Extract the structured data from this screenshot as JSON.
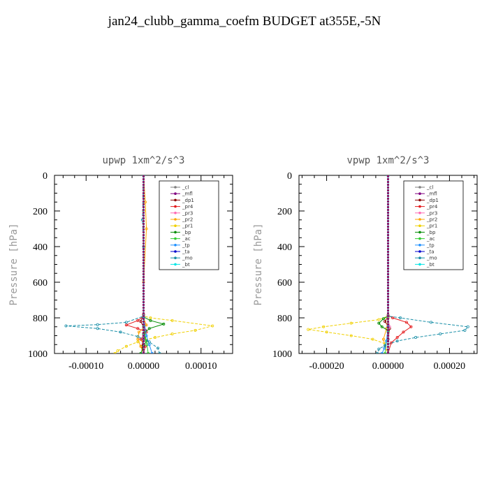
{
  "title": "jan24_clubb_gamma_coefm  BUDGET at355E,-5N",
  "chart_data": [
    {
      "type": "line",
      "title": "upwp   1xm^2/s^3",
      "ylabel": "Pressure [hPa]",
      "xlabel": "",
      "xlim": [
        -0.000155,
        0.000155
      ],
      "ylim": [
        1000,
        0
      ],
      "xticks": [
        -0.0001,
        0,
        0.0001
      ],
      "xtick_labels": [
        "-0.00010",
        "0.00000",
        "0.00010"
      ],
      "yticks": [
        0,
        200,
        400,
        600,
        800,
        1000
      ],
      "ytick_labels": [
        "0",
        "200",
        "400",
        "600",
        "800",
        "1000"
      ],
      "legend_position": "top-right",
      "series": [
        {
          "name": "_cl",
          "color": "#7f7f7f",
          "points": [
            [
              0,
              0
            ],
            [
              0,
              800
            ],
            [
              0,
              1000
            ]
          ]
        },
        {
          "name": "_mfl",
          "color": "#800080",
          "points": [
            [
              0,
              0
            ],
            [
              0,
              800
            ],
            [
              0,
              1000
            ]
          ]
        },
        {
          "name": "_dp1",
          "color": "#8b0000",
          "points": [
            [
              0,
              0
            ],
            [
              0,
              780
            ],
            [
              -5e-06,
              820
            ],
            [
              3e-06,
              870
            ],
            [
              0,
              920
            ],
            [
              -3e-06,
              960
            ],
            [
              0,
              1000
            ]
          ]
        },
        {
          "name": "_pr4",
          "color": "#e41a1c",
          "points": [
            [
              0,
              0
            ],
            [
              0,
              790
            ],
            [
              -1e-05,
              815
            ],
            [
              -3e-05,
              840
            ],
            [
              -1e-05,
              860
            ],
            [
              5e-06,
              880
            ],
            [
              -5e-06,
              920
            ],
            [
              3e-06,
              960
            ],
            [
              0,
              1000
            ]
          ]
        },
        {
          "name": "_pr3",
          "color": "#ff69b4",
          "points": [
            [
              0,
              0
            ],
            [
              0,
              800
            ],
            [
              3e-06,
              840
            ],
            [
              0,
              900
            ],
            [
              0,
              1000
            ]
          ]
        },
        {
          "name": "_pr2",
          "color": "#ffa500",
          "points": [
            [
              0,
              0
            ],
            [
              3e-06,
              150
            ],
            [
              5e-06,
              300
            ],
            [
              0,
              600
            ],
            [
              0,
              800
            ],
            [
              5e-06,
              840
            ],
            [
              -8e-06,
              880
            ],
            [
              -1e-05,
              920
            ],
            [
              -5e-06,
              960
            ],
            [
              0,
              1000
            ]
          ]
        },
        {
          "name": "_pr1",
          "color": "#f0d000",
          "points": [
            [
              0,
              0
            ],
            [
              0,
              200
            ],
            [
              0,
              790
            ],
            [
              1.2e-05,
              800
            ],
            [
              5e-05,
              815
            ],
            [
              0.00012,
              845
            ],
            [
              9e-05,
              870
            ],
            [
              5e-05,
              890
            ],
            [
              2e-05,
              910
            ],
            [
              -1e-05,
              935
            ],
            [
              -3e-05,
              960
            ],
            [
              -4.5e-05,
              985
            ],
            [
              -5e-05,
              1000
            ]
          ]
        },
        {
          "name": "_bp",
          "color": "#008b00",
          "points": [
            [
              0,
              0
            ],
            [
              0,
              795
            ],
            [
              1.2e-05,
              815
            ],
            [
              3.5e-05,
              835
            ],
            [
              1e-05,
              860
            ],
            [
              0,
              890
            ],
            [
              5e-06,
              930
            ],
            [
              0,
              960
            ],
            [
              -5e-06,
              1000
            ]
          ]
        },
        {
          "name": "_ac",
          "color": "#32cd32",
          "points": [
            [
              0,
              0
            ],
            [
              0,
              850
            ],
            [
              3e-06,
              900
            ],
            [
              6e-06,
              950
            ],
            [
              8e-06,
              1000
            ]
          ]
        },
        {
          "name": "_tp",
          "color": "#1e90ff",
          "points": [
            [
              0,
              0
            ],
            [
              0,
              800
            ],
            [
              5e-06,
              900
            ],
            [
              1e-05,
              950
            ],
            [
              1.5e-05,
              1000
            ]
          ]
        },
        {
          "name": "_ta",
          "color": "#0000cd",
          "points": [
            [
              0,
              0
            ],
            [
              0,
              1000
            ]
          ]
        },
        {
          "name": "_mo",
          "color": "#1a8fa8",
          "points": [
            [
              0,
              0
            ],
            [
              -2e-06,
              250
            ],
            [
              0,
              400
            ],
            [
              0,
              790
            ],
            [
              -3e-05,
              825
            ],
            [
              -8e-05,
              838
            ],
            [
              -0.000135,
              845
            ],
            [
              -8e-05,
              860
            ],
            [
              -4e-05,
              880
            ],
            [
              -1e-05,
              905
            ],
            [
              1e-05,
              935
            ],
            [
              2.5e-05,
              970
            ],
            [
              2.8e-05,
              1000
            ]
          ]
        },
        {
          "name": "_bt",
          "color": "#00e5e5",
          "points": [
            [
              0,
              0
            ],
            [
              0,
              1000
            ]
          ]
        }
      ]
    },
    {
      "type": "line",
      "title": "vpwp   1xm^2/s^3",
      "ylabel": "Pressure [hPa]",
      "xlabel": "",
      "xlim": [
        -0.00029,
        0.00029
      ],
      "ylim": [
        1000,
        0
      ],
      "xticks": [
        -0.0002,
        0,
        0.0002
      ],
      "xtick_labels": [
        "-0.00020",
        "0.00000",
        "0.00020"
      ],
      "yticks": [
        0,
        200,
        400,
        600,
        800,
        1000
      ],
      "ytick_labels": [
        "0",
        "200",
        "400",
        "600",
        "800",
        "1000"
      ],
      "legend_position": "top-right",
      "series": [
        {
          "name": "_cl",
          "color": "#7f7f7f",
          "points": [
            [
              0,
              0
            ],
            [
              0,
              800
            ],
            [
              0,
              1000
            ]
          ]
        },
        {
          "name": "_mfl",
          "color": "#800080",
          "points": [
            [
              0,
              0
            ],
            [
              0,
              800
            ],
            [
              0,
              1000
            ]
          ]
        },
        {
          "name": "_dp1",
          "color": "#8b0000",
          "points": [
            [
              0,
              0
            ],
            [
              0,
              790
            ],
            [
              -1e-05,
              820
            ],
            [
              5e-06,
              860
            ],
            [
              0,
              920
            ],
            [
              0,
              1000
            ]
          ]
        },
        {
          "name": "_pr4",
          "color": "#e41a1c",
          "points": [
            [
              0,
              0
            ],
            [
              0,
              785
            ],
            [
              1.5e-05,
              800
            ],
            [
              6e-05,
              825
            ],
            [
              7.5e-05,
              850
            ],
            [
              5e-05,
              880
            ],
            [
              3e-05,
              910
            ],
            [
              1e-05,
              940
            ],
            [
              0,
              1000
            ]
          ]
        },
        {
          "name": "_pr3",
          "color": "#ff69b4",
          "points": [
            [
              0,
              0
            ],
            [
              0,
              800
            ],
            [
              5e-06,
              850
            ],
            [
              0,
              900
            ],
            [
              0,
              1000
            ]
          ]
        },
        {
          "name": "_pr2",
          "color": "#ffa500",
          "points": [
            [
              0,
              0
            ],
            [
              0,
              800
            ],
            [
              -5e-06,
              860
            ],
            [
              -1.5e-05,
              920
            ],
            [
              -1e-05,
              960
            ],
            [
              0,
              1000
            ]
          ]
        },
        {
          "name": "_pr1",
          "color": "#f0d000",
          "points": [
            [
              0,
              0
            ],
            [
              0,
              790
            ],
            [
              -3e-05,
              810
            ],
            [
              -0.00012,
              830
            ],
            [
              -0.00021,
              850
            ],
            [
              -0.00026,
              865
            ],
            [
              -0.0002,
              880
            ],
            [
              -0.00012,
              900
            ],
            [
              -5e-05,
              920
            ],
            [
              -1e-05,
              945
            ],
            [
              0,
              1000
            ]
          ]
        },
        {
          "name": "_bp",
          "color": "#008b00",
          "points": [
            [
              0,
              0
            ],
            [
              0,
              790
            ],
            [
              -1.5e-05,
              805
            ],
            [
              -3e-05,
              830
            ],
            [
              -2e-05,
              850
            ],
            [
              0,
              870
            ],
            [
              0,
              1000
            ]
          ]
        },
        {
          "name": "_ac",
          "color": "#32cd32",
          "points": [
            [
              0,
              0
            ],
            [
              0,
              880
            ],
            [
              -5e-06,
              930
            ],
            [
              -1e-05,
              1000
            ]
          ]
        },
        {
          "name": "_tp",
          "color": "#1e90ff",
          "points": [
            [
              0,
              0
            ],
            [
              0,
              850
            ],
            [
              -5e-06,
              930
            ],
            [
              -1.2e-05,
              970
            ],
            [
              -2e-05,
              1000
            ]
          ]
        },
        {
          "name": "_ta",
          "color": "#0000cd",
          "points": [
            [
              0,
              0
            ],
            [
              0,
              1000
            ]
          ]
        },
        {
          "name": "_mo",
          "color": "#1a8fa8",
          "points": [
            [
              0,
              0
            ],
            [
              0,
              790
            ],
            [
              4e-05,
              800
            ],
            [
              0.00014,
              825
            ],
            [
              0.00026,
              850
            ],
            [
              0.00025,
              870
            ],
            [
              0.00017,
              890
            ],
            [
              9e-05,
              910
            ],
            [
              3e-05,
              930
            ],
            [
              -1e-05,
              955
            ],
            [
              -3e-05,
              975
            ],
            [
              -3.5e-05,
              1000
            ]
          ]
        },
        {
          "name": "_bt",
          "color": "#00e5e5",
          "points": [
            [
              0,
              0
            ],
            [
              0,
              1000
            ]
          ]
        }
      ]
    }
  ]
}
